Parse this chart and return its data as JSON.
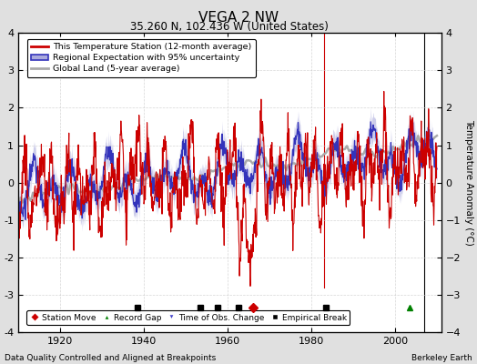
{
  "title": "VEGA 2 NW",
  "subtitle": "35.260 N, 102.436 W (United States)",
  "ylabel": "Temperature Anomaly (°C)",
  "xlabel_note": "Data Quality Controlled and Aligned at Breakpoints",
  "credit": "Berkeley Earth",
  "xlim": [
    1910,
    2011
  ],
  "ylim": [
    -4,
    4
  ],
  "yticks": [
    -4,
    -3,
    -2,
    -1,
    0,
    1,
    2,
    3,
    4
  ],
  "xticks": [
    1920,
    1940,
    1960,
    1980,
    2000
  ],
  "bg_color": "#e0e0e0",
  "plot_bg_color": "#ffffff",
  "red_line_color": "#cc0000",
  "blue_line_color": "#3333bb",
  "blue_fill_color": "#aaaadd",
  "gray_line_color": "#aaaaaa",
  "legend_entries": [
    "This Temperature Station (12-month average)",
    "Regional Expectation with 95% uncertainty",
    "Global Land (5-year average)"
  ],
  "station_moves_x": [
    1966.0
  ],
  "record_gaps_x": [
    2003.5
  ],
  "time_obs_changes_x": [],
  "empirical_breaks_x": [
    1938.5,
    1953.5,
    1957.5,
    1962.5,
    1983.5
  ],
  "marker_y": -3.35,
  "vertical_line_red_x": 1983,
  "vertical_line_black_x": 2007,
  "red_line_seed": 10,
  "blue_line_seed": 20,
  "gray_line_seed": 30
}
